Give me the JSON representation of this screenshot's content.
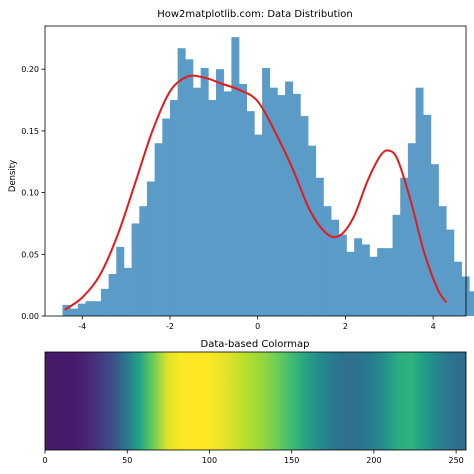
{
  "chart_data": [
    {
      "type": "bar",
      "subtype": "histogram-with-kde",
      "title": "How2matplotlib.com: Data Distribution",
      "xlabel": "",
      "ylabel": "Density",
      "xlim": [
        -4.85,
        4.75
      ],
      "ylim": [
        0,
        0.235
      ],
      "grid": false,
      "xticks": [
        -4,
        -2,
        0,
        2,
        4
      ],
      "xtick_labels": [
        "-4",
        "-2",
        "0",
        "2",
        "4"
      ],
      "yticks": [
        0,
        0.05,
        0.1,
        0.15,
        0.2
      ],
      "ytick_labels": [
        "0.00",
        "0.05",
        "0.10",
        "0.15",
        "0.20"
      ],
      "bar_color": "#5b9bc8",
      "line_color": "#e41a1c",
      "bins": {
        "start": -4.45,
        "width": 0.175,
        "values": [
          0.009,
          0.006,
          0.01,
          0.012,
          0.012,
          0.022,
          0.034,
          0.056,
          0.039,
          0.075,
          0.089,
          0.109,
          0.14,
          0.16,
          0.175,
          0.217,
          0.208,
          0.185,
          0.201,
          0.175,
          0.2,
          0.182,
          0.226,
          0.188,
          0.166,
          0.147,
          0.201,
          0.185,
          0.179,
          0.19,
          0.18,
          0.162,
          0.138,
          0.112,
          0.089,
          0.078,
          0.066,
          0.052,
          0.063,
          0.058,
          0.048,
          0.055,
          0.055,
          0.082,
          0.112,
          0.14,
          0.185,
          0.163,
          0.123,
          0.089,
          0.07,
          0.044,
          0.032,
          0.02
        ]
      },
      "series": [
        {
          "type": "line",
          "x": [
            -4.4,
            -4.0,
            -3.6,
            -3.2,
            -2.8,
            -2.4,
            -2.0,
            -1.6,
            -1.2,
            -0.8,
            -0.4,
            0.0,
            0.4,
            0.8,
            1.2,
            1.6,
            1.9,
            2.2,
            2.5,
            2.8,
            3.0,
            3.2,
            3.5,
            3.8,
            4.1,
            4.3
          ],
          "y": [
            0.005,
            0.015,
            0.033,
            0.065,
            0.107,
            0.15,
            0.182,
            0.194,
            0.193,
            0.188,
            0.183,
            0.174,
            0.149,
            0.119,
            0.085,
            0.066,
            0.066,
            0.081,
            0.109,
            0.13,
            0.134,
            0.126,
            0.092,
            0.051,
            0.022,
            0.011
          ]
        }
      ]
    },
    {
      "type": "heatmap",
      "title": "Data-based Colormap",
      "colormap": "viridis",
      "xlim": [
        0,
        256
      ],
      "xticks": [
        0,
        50,
        100,
        150,
        200,
        250
      ],
      "xtick_labels": [
        "0",
        "50",
        "100",
        "150",
        "200",
        "250"
      ],
      "viridis_stops": [
        "#440154",
        "#482878",
        "#3e4989",
        "#31688e",
        "#26828e",
        "#1f9e89",
        "#35b779",
        "#6ece58",
        "#b5de2b",
        "#fde725"
      ],
      "values": [
        0.07,
        0.07,
        0.07,
        0.1,
        0.16,
        0.25,
        0.4,
        0.58,
        0.78,
        0.95,
        1.0,
        1.0,
        1.0,
        0.97,
        0.93,
        0.88,
        0.84,
        0.78,
        0.7,
        0.6,
        0.5,
        0.42,
        0.37,
        0.37,
        0.42,
        0.5,
        0.62,
        0.64,
        0.55,
        0.45,
        0.38,
        0.34
      ]
    }
  ]
}
